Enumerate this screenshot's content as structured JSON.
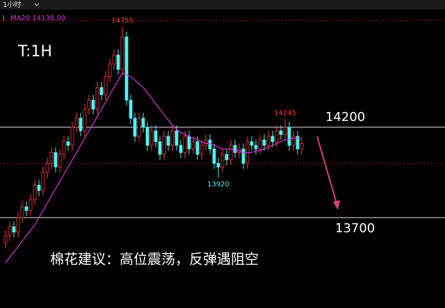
{
  "chart_data": {
    "type": "candlestick",
    "period": "1小时",
    "indicator_label": "MA20 14138.00",
    "timeframe_label": "T:1H",
    "caption": "棉花建议：高位震荡，反弹遇阻空",
    "ylim": [
      13200,
      14827
    ],
    "up_color": "#ff3b3b",
    "down_color": "#4ef2f2",
    "open": [
      13560,
      13600,
      13650,
      13620,
      13700,
      13760,
      13740,
      13800,
      13880,
      13850,
      13950,
      14000,
      14060,
      13980,
      14050,
      14120,
      14100,
      14200,
      14250,
      14180,
      14300,
      14350,
      14300,
      14420,
      14380,
      14480,
      14550,
      14600,
      14520,
      14700,
      14350,
      14250,
      14150,
      14250,
      14200,
      14100,
      14180,
      14120,
      14050,
      14150,
      14100,
      14180,
      14100,
      14060,
      14150,
      14080,
      14120,
      14050,
      14100,
      14130,
      14080,
      14000,
      13980,
      14050,
      14020,
      14100,
      14060,
      14080,
      14000,
      14120,
      14100,
      14080,
      14130,
      14100,
      14150,
      14120,
      14180,
      14160,
      14200,
      14100,
      14150,
      14080
    ],
    "high": [
      13630,
      13680,
      13680,
      13730,
      13790,
      13790,
      13830,
      13910,
      13910,
      13980,
      14030,
      14090,
      14090,
      14080,
      14150,
      14150,
      14230,
      14280,
      14280,
      14330,
      14380,
      14380,
      14450,
      14450,
      14510,
      14580,
      14630,
      14630,
      14755,
      14730,
      14380,
      14280,
      14280,
      14280,
      14230,
      14210,
      14210,
      14150,
      14180,
      14180,
      14210,
      14210,
      14130,
      14180,
      14180,
      14150,
      14150,
      14130,
      14160,
      14160,
      14110,
      14030,
      14080,
      14080,
      14130,
      14130,
      14110,
      14110,
      14150,
      14150,
      14130,
      14160,
      14160,
      14180,
      14180,
      14210,
      14210,
      14245,
      14230,
      14180,
      14180,
      14140
    ],
    "low": [
      13530,
      13570,
      13590,
      13590,
      13670,
      13710,
      13710,
      13770,
      13820,
      13820,
      13920,
      13970,
      13950,
      13950,
      14020,
      14070,
      14070,
      14170,
      14150,
      14150,
      14270,
      14270,
      14270,
      14350,
      14350,
      14450,
      14520,
      14490,
      14490,
      14320,
      14220,
      14120,
      14120,
      14170,
      14070,
      14070,
      14090,
      14020,
      14020,
      14070,
      14070,
      14070,
      14030,
      14030,
      14050,
      14050,
      14020,
      14020,
      14070,
      14050,
      13970,
      13920,
      13950,
      13990,
      13990,
      14030,
      14030,
      13970,
      13970,
      14070,
      14050,
      14050,
      14070,
      14070,
      14090,
      14090,
      14130,
      14130,
      14070,
      14070,
      14050,
      14050
    ],
    "close": [
      13600,
      13650,
      13620,
      13700,
      13760,
      13740,
      13800,
      13880,
      13850,
      13950,
      14000,
      14060,
      13980,
      14050,
      14120,
      14100,
      14200,
      14250,
      14180,
      14300,
      14350,
      14300,
      14420,
      14380,
      14480,
      14550,
      14600,
      14520,
      14700,
      14350,
      14250,
      14150,
      14250,
      14200,
      14100,
      14180,
      14120,
      14050,
      14150,
      14100,
      14180,
      14100,
      14060,
      14150,
      14080,
      14120,
      14050,
      14100,
      14130,
      14080,
      14000,
      13980,
      14050,
      14020,
      14100,
      14060,
      14080,
      14000,
      14120,
      14100,
      14080,
      14130,
      14100,
      14150,
      14120,
      14180,
      14160,
      14200,
      14100,
      14150,
      14080,
      14110
    ],
    "ma20": {
      "color": "#e033e0",
      "values": [
        13450,
        13480,
        13510,
        13540,
        13570,
        13600,
        13630,
        13660,
        13700,
        13740,
        13780,
        13820,
        13860,
        13900,
        13940,
        13980,
        14020,
        14060,
        14100,
        14140,
        14180,
        14220,
        14260,
        14300,
        14340,
        14380,
        14420,
        14460,
        14500,
        14490,
        14480,
        14460,
        14440,
        14420,
        14390,
        14360,
        14330,
        14300,
        14270,
        14240,
        14210,
        14190,
        14170,
        14160,
        14150,
        14140,
        14130,
        14120,
        14110,
        14110,
        14100,
        14090,
        14080,
        14080,
        14080,
        14070,
        14070,
        14060,
        14060,
        14060,
        14070,
        14070,
        14080,
        14090,
        14100,
        14110,
        14120,
        14130,
        14130,
        14140,
        14140,
        14138
      ]
    },
    "annotations": [
      {
        "value": 14755,
        "index": 28,
        "color": "#ff3b3b"
      },
      {
        "value": 14245,
        "index": 67,
        "color": "#ff3b3b"
      },
      {
        "value": 13920,
        "index": 51,
        "color": "#4ef2f2"
      }
    ],
    "levels": [
      14200,
      13700
    ],
    "dashed_levels": [
      14790,
      14000
    ]
  }
}
